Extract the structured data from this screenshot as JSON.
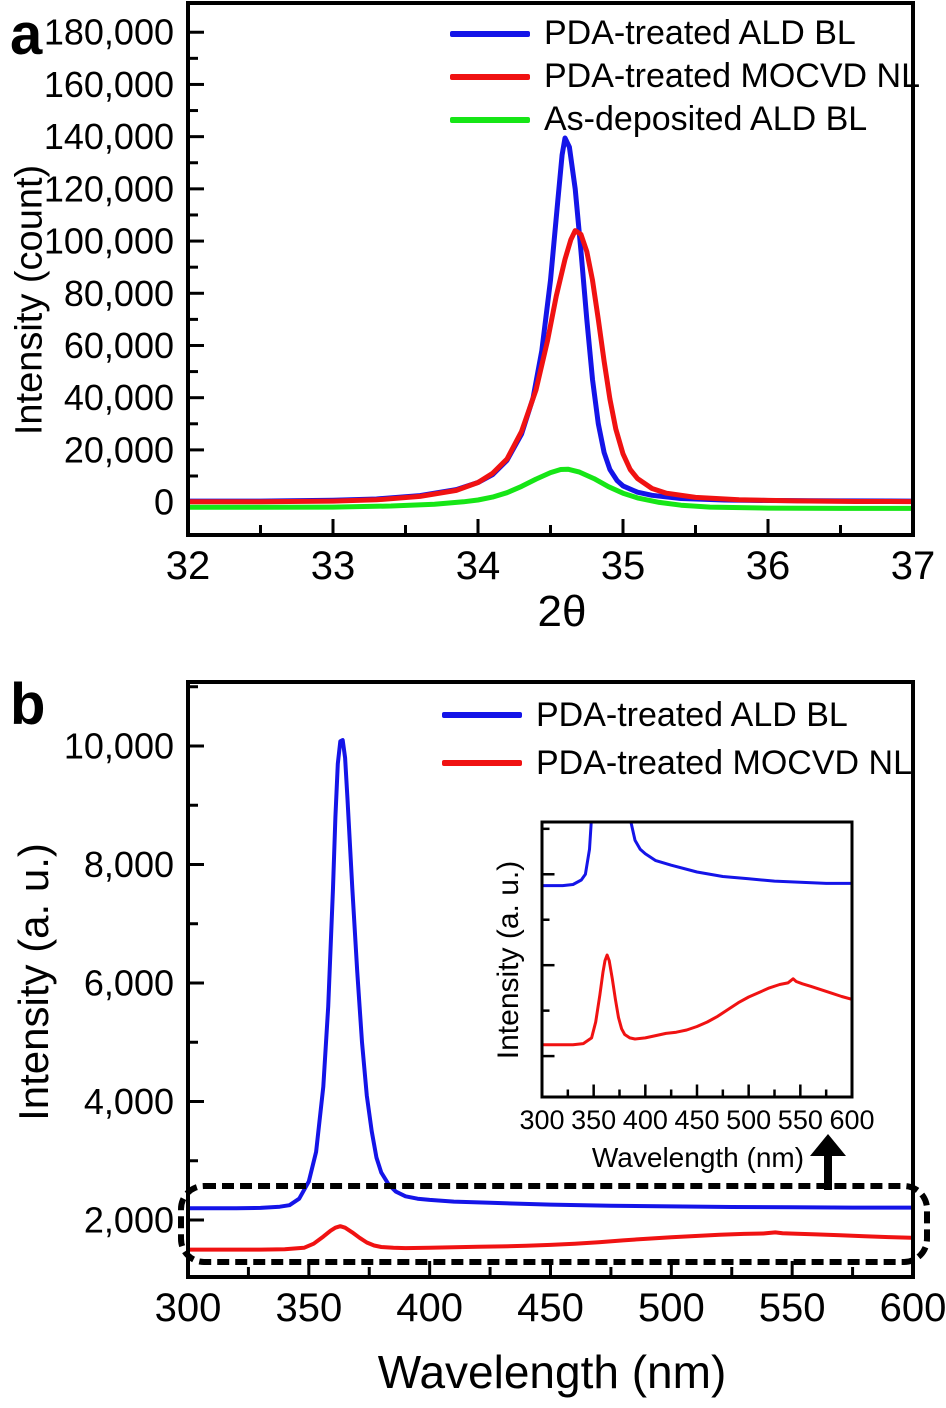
{
  "chart_data": [
    {
      "id": "panel-a-xrd",
      "type": "line",
      "panel_label": "a",
      "xlabel": "2θ",
      "ylabel": "Intensity (count)",
      "xlim": [
        32,
        37
      ],
      "ylim": [
        -12600,
        191200
      ],
      "grid": false,
      "legend_position": "top-right-inside",
      "xticks": {
        "major": [
          32,
          33,
          34,
          35,
          36,
          37
        ],
        "labels": [
          "32",
          "33",
          "34",
          "35",
          "36",
          "37"
        ],
        "minor": [
          32.5,
          33.5,
          34.5,
          35.5,
          36.5
        ]
      },
      "yticks": {
        "major": [
          0,
          20000,
          40000,
          60000,
          80000,
          100000,
          120000,
          140000,
          160000,
          180000
        ],
        "labels": [
          "0",
          "20,000",
          "40,000",
          "60,000",
          "80,000",
          "100,000",
          "120,000",
          "140,000",
          "160,000",
          "180,000"
        ],
        "minor": [
          10000,
          30000,
          50000,
          70000,
          90000,
          110000,
          130000,
          150000,
          170000
        ]
      },
      "series": [
        {
          "name": "PDA-treated ALD BL",
          "color": "#1414e8",
          "peak_center_2theta": 34.6,
          "peak_height": 140000,
          "points": [
            [
              32,
              400
            ],
            [
              32.5,
              400
            ],
            [
              33,
              700
            ],
            [
              33.3,
              1200
            ],
            [
              33.6,
              2500
            ],
            [
              33.85,
              4800
            ],
            [
              34.0,
              7500
            ],
            [
              34.1,
              10500
            ],
            [
              34.2,
              16000
            ],
            [
              34.3,
              26000
            ],
            [
              34.38,
              40000
            ],
            [
              34.44,
              58000
            ],
            [
              34.5,
              85000
            ],
            [
              34.55,
              115000
            ],
            [
              34.58,
              133000
            ],
            [
              34.6,
              139500
            ],
            [
              34.63,
              136000
            ],
            [
              34.67,
              120000
            ],
            [
              34.71,
              96000
            ],
            [
              34.75,
              70000
            ],
            [
              34.79,
              47000
            ],
            [
              34.83,
              30000
            ],
            [
              34.87,
              19000
            ],
            [
              34.91,
              12500
            ],
            [
              34.96,
              8200
            ],
            [
              35.0,
              6200
            ],
            [
              35.1,
              3800
            ],
            [
              35.2,
              2600
            ],
            [
              35.4,
              1400
            ],
            [
              35.7,
              800
            ],
            [
              36.0,
              600
            ],
            [
              36.5,
              450
            ],
            [
              37,
              400
            ]
          ]
        },
        {
          "name": "PDA-treated MOCVD NL",
          "color": "#f01212",
          "peak_center_2theta": 34.67,
          "peak_height": 104000,
          "points": [
            [
              32,
              150
            ],
            [
              32.5,
              150
            ],
            [
              33,
              400
            ],
            [
              33.3,
              900
            ],
            [
              33.6,
              2200
            ],
            [
              33.85,
              4500
            ],
            [
              34.0,
              7500
            ],
            [
              34.1,
              11000
            ],
            [
              34.2,
              16500
            ],
            [
              34.3,
              27000
            ],
            [
              34.4,
              43000
            ],
            [
              34.48,
              62000
            ],
            [
              34.54,
              79000
            ],
            [
              34.6,
              93000
            ],
            [
              34.64,
              100500
            ],
            [
              34.67,
              104000
            ],
            [
              34.71,
              102500
            ],
            [
              34.75,
              96000
            ],
            [
              34.79,
              85000
            ],
            [
              34.83,
              70000
            ],
            [
              34.87,
              54000
            ],
            [
              34.91,
              39500
            ],
            [
              34.95,
              28000
            ],
            [
              35.0,
              18500
            ],
            [
              35.05,
              12500
            ],
            [
              35.1,
              9000
            ],
            [
              35.2,
              5200
            ],
            [
              35.3,
              3400
            ],
            [
              35.5,
              1800
            ],
            [
              35.8,
              900
            ],
            [
              36.2,
              450
            ],
            [
              36.6,
              250
            ],
            [
              37,
              200
            ]
          ]
        },
        {
          "name": "As-deposited ALD BL",
          "color": "#16e616",
          "peak_center_2theta": 34.6,
          "peak_height": 12600,
          "points": [
            [
              32,
              -2000
            ],
            [
              32.5,
              -2000
            ],
            [
              33,
              -1900
            ],
            [
              33.4,
              -1500
            ],
            [
              33.7,
              -800
            ],
            [
              33.9,
              100
            ],
            [
              34.0,
              800
            ],
            [
              34.1,
              1900
            ],
            [
              34.2,
              3600
            ],
            [
              34.3,
              6000
            ],
            [
              34.4,
              8800
            ],
            [
              34.5,
              11300
            ],
            [
              34.57,
              12500
            ],
            [
              34.62,
              12600
            ],
            [
              34.7,
              11500
            ],
            [
              34.8,
              9000
            ],
            [
              34.9,
              5900
            ],
            [
              35.0,
              3400
            ],
            [
              35.1,
              1600
            ],
            [
              35.25,
              -100
            ],
            [
              35.4,
              -1200
            ],
            [
              35.6,
              -1900
            ],
            [
              36.0,
              -2300
            ],
            [
              36.5,
              -2400
            ],
            [
              37,
              -2400
            ]
          ]
        }
      ]
    },
    {
      "id": "panel-b-pl",
      "type": "line",
      "panel_label": "b",
      "xlabel": "Wavelength (nm)",
      "ylabel": "Intensity (a. u.)",
      "xlim": [
        300,
        600
      ],
      "ylim": [
        1038,
        11080
      ],
      "grid": false,
      "legend_position": "top-right-inside",
      "xticks": {
        "major": [
          300,
          350,
          400,
          450,
          500,
          550,
          600
        ],
        "labels": [
          "300",
          "350",
          "400",
          "450",
          "500",
          "550",
          "600"
        ],
        "minor": [
          325,
          375,
          425,
          475,
          525,
          575
        ]
      },
      "yticks": {
        "major": [
          2000,
          4000,
          6000,
          8000,
          10000
        ],
        "labels": [
          "2,000",
          "4,000",
          "6,000",
          "8,000",
          "10,000"
        ],
        "minor": [
          3000,
          5000,
          7000,
          9000,
          11000
        ]
      },
      "series": [
        {
          "name": "PDA-treated ALD BL",
          "color": "#1414e8",
          "peak_center_nm": 364,
          "peak_height": 10100,
          "points": [
            [
              300,
              2200
            ],
            [
              320,
              2200
            ],
            [
              330,
              2205
            ],
            [
              338,
              2225
            ],
            [
              342,
              2250
            ],
            [
              346,
              2360
            ],
            [
              350,
              2650
            ],
            [
              353,
              3150
            ],
            [
              356,
              4250
            ],
            [
              358,
              5600
            ],
            [
              360,
              7600
            ],
            [
              361,
              8800
            ],
            [
              362,
              9700
            ],
            [
              363,
              10080
            ],
            [
              364,
              10100
            ],
            [
              365,
              9800
            ],
            [
              366,
              9100
            ],
            [
              368,
              7600
            ],
            [
              370,
              6200
            ],
            [
              372,
              5000
            ],
            [
              374,
              4100
            ],
            [
              376,
              3500
            ],
            [
              378,
              3050
            ],
            [
              380,
              2800
            ],
            [
              383,
              2600
            ],
            [
              386,
              2480
            ],
            [
              390,
              2400
            ],
            [
              395,
              2360
            ],
            [
              400,
              2340
            ],
            [
              410,
              2310
            ],
            [
              425,
              2290
            ],
            [
              450,
              2260
            ],
            [
              475,
              2240
            ],
            [
              500,
              2230
            ],
            [
              525,
              2220
            ],
            [
              550,
              2215
            ],
            [
              575,
              2210
            ],
            [
              600,
              2210
            ]
          ]
        },
        {
          "name": "PDA-treated MOCVD NL",
          "color": "#f01212",
          "peak_center_nm": 363,
          "peak_height": 1895,
          "points": [
            [
              300,
              1500
            ],
            [
              315,
              1500
            ],
            [
              330,
              1500
            ],
            [
              340,
              1505
            ],
            [
              348,
              1530
            ],
            [
              352,
              1600
            ],
            [
              356,
              1720
            ],
            [
              359,
              1820
            ],
            [
              361,
              1870
            ],
            [
              363,
              1895
            ],
            [
              365,
              1870
            ],
            [
              368,
              1790
            ],
            [
              371,
              1700
            ],
            [
              374,
              1620
            ],
            [
              377,
              1570
            ],
            [
              380,
              1545
            ],
            [
              385,
              1530
            ],
            [
              390,
              1525
            ],
            [
              400,
              1530
            ],
            [
              410,
              1540
            ],
            [
              420,
              1550
            ],
            [
              430,
              1555
            ],
            [
              440,
              1565
            ],
            [
              450,
              1580
            ],
            [
              460,
              1600
            ],
            [
              470,
              1625
            ],
            [
              480,
              1655
            ],
            [
              490,
              1685
            ],
            [
              500,
              1710
            ],
            [
              510,
              1730
            ],
            [
              520,
              1750
            ],
            [
              530,
              1765
            ],
            [
              538,
              1772
            ],
            [
              543,
              1790
            ],
            [
              546,
              1778
            ],
            [
              552,
              1768
            ],
            [
              560,
              1757
            ],
            [
              570,
              1742
            ],
            [
              580,
              1727
            ],
            [
              590,
              1712
            ],
            [
              600,
              1700
            ]
          ]
        }
      ]
    },
    {
      "id": "panel-b-inset-zoom",
      "type": "line",
      "panel_label": "",
      "xlabel": "Wavelength (nm)",
      "ylabel": "Intensity (a. u.)",
      "xlim": [
        300,
        600
      ],
      "ylim": [
        1270,
        2480
      ],
      "grid": false,
      "legend_position": "none",
      "xticks": {
        "major": [
          300,
          350,
          400,
          450,
          500,
          550,
          600
        ],
        "labels": [
          "300",
          "350",
          "400",
          "450",
          "500",
          "550",
          "600"
        ],
        "minor": [
          325,
          375,
          425,
          475,
          525,
          575
        ]
      },
      "yticks": {
        "major": [
          1450,
          1850,
          2250
        ],
        "labels": null,
        "minor": [
          1650,
          2050,
          2450
        ]
      },
      "series": [
        {
          "name": "PDA-treated ALD BL",
          "color": "#1414e8",
          "points_from": [
            1,
            0
          ]
        },
        {
          "name": "PDA-treated MOCVD NL",
          "color": "#f01212",
          "points_from": [
            1,
            1
          ]
        }
      ]
    }
  ]
}
